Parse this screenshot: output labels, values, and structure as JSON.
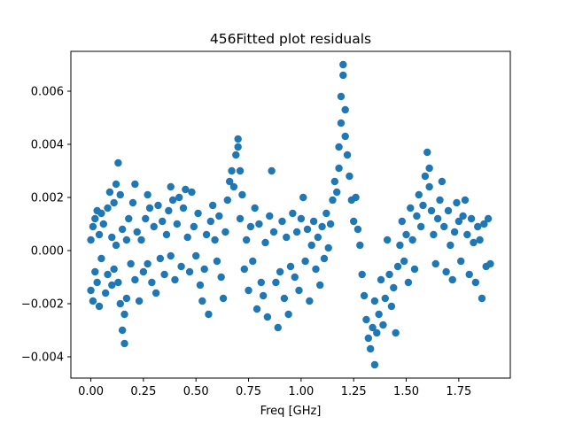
{
  "chart_data": {
    "type": "scatter",
    "title": "456Fitted plot residuals",
    "xlabel": "Freq [GHz]",
    "ylabel": "",
    "xlim": [
      -0.095,
      1.995
    ],
    "ylim": [
      -0.0048,
      0.0075
    ],
    "x_ticks": [
      0.0,
      0.25,
      0.5,
      0.75,
      1.0,
      1.25,
      1.5,
      1.75
    ],
    "x_tick_labels": [
      "0.00",
      "0.25",
      "0.50",
      "0.75",
      "1.00",
      "1.25",
      "1.50",
      "1.75"
    ],
    "y_ticks": [
      -0.004,
      -0.002,
      0.0,
      0.002,
      0.004,
      0.006
    ],
    "y_tick_labels": [
      "−0.004",
      "−0.002",
      "0.000",
      "0.002",
      "0.004",
      "0.006"
    ],
    "grid": false,
    "marker_color": "#1f77b4",
    "series": [
      {
        "points": [
          [
            0.0,
            0.0004
          ],
          [
            0.0,
            -0.0015
          ],
          [
            0.01,
            0.0009
          ],
          [
            0.01,
            -0.0019
          ],
          [
            0.02,
            0.0012
          ],
          [
            0.02,
            -0.0008
          ],
          [
            0.03,
            0.0015
          ],
          [
            0.03,
            -0.0012
          ],
          [
            0.04,
            0.0006
          ],
          [
            0.04,
            -0.0021
          ],
          [
            0.05,
            0.0014
          ],
          [
            0.05,
            -0.0003
          ],
          [
            0.06,
            0.001
          ],
          [
            0.07,
            -0.0016
          ],
          [
            0.08,
            0.0016
          ],
          [
            0.08,
            -0.0009
          ],
          [
            0.09,
            0.0022
          ],
          [
            0.1,
            0.0005
          ],
          [
            0.1,
            -0.0013
          ],
          [
            0.11,
            0.0018
          ],
          [
            0.11,
            -0.0007
          ],
          [
            0.12,
            0.0025
          ],
          [
            0.12,
            0.0002
          ],
          [
            0.13,
            0.0033
          ],
          [
            0.13,
            -0.0012
          ],
          [
            0.14,
            0.0021
          ],
          [
            0.14,
            -0.002
          ],
          [
            0.15,
            0.0008
          ],
          [
            0.15,
            -0.003
          ],
          [
            0.16,
            -0.0035
          ],
          [
            0.16,
            -0.0024
          ],
          [
            0.17,
            0.0004
          ],
          [
            0.17,
            -0.0018
          ],
          [
            0.18,
            0.0012
          ],
          [
            0.19,
            -0.0005
          ],
          [
            0.2,
            0.0018
          ],
          [
            0.21,
            0.0025
          ],
          [
            0.21,
            -0.0011
          ],
          [
            0.22,
            0.0007
          ],
          [
            0.23,
            -0.0019
          ],
          [
            0.24,
            0.0004
          ],
          [
            0.25,
            -0.0008
          ],
          [
            0.26,
            0.0012
          ],
          [
            0.27,
            0.0021
          ],
          [
            0.27,
            -0.0005
          ],
          [
            0.28,
            0.0016
          ],
          [
            0.29,
            -0.0012
          ],
          [
            0.3,
            0.0009
          ],
          [
            0.31,
            -0.0016
          ],
          [
            0.32,
            0.0017
          ],
          [
            0.33,
            -0.0003
          ],
          [
            0.34,
            0.0011
          ],
          [
            0.35,
            -0.0009
          ],
          [
            0.36,
            0.0006
          ],
          [
            0.37,
            0.0015
          ],
          [
            0.38,
            0.0024
          ],
          [
            0.38,
            -0.0002
          ],
          [
            0.39,
            0.0019
          ],
          [
            0.4,
            -0.0011
          ],
          [
            0.41,
            0.001
          ],
          [
            0.42,
            0.002
          ],
          [
            0.43,
            -0.0006
          ],
          [
            0.44,
            0.0016
          ],
          [
            0.45,
            0.0023
          ],
          [
            0.46,
            0.0005
          ],
          [
            0.47,
            -0.0008
          ],
          [
            0.48,
            0.0022
          ],
          [
            0.49,
            0.0009
          ],
          [
            0.5,
            -0.0002
          ],
          [
            0.51,
            0.0014
          ],
          [
            0.52,
            -0.0013
          ],
          [
            0.53,
            -0.0019
          ],
          [
            0.54,
            -0.0007
          ],
          [
            0.55,
            0.0006
          ],
          [
            0.56,
            -0.0024
          ],
          [
            0.57,
            0.0011
          ],
          [
            0.58,
            0.0017
          ],
          [
            0.59,
            0.0004
          ],
          [
            0.6,
            -0.0004
          ],
          [
            0.61,
            0.0013
          ],
          [
            0.62,
            -0.001
          ],
          [
            0.63,
            -0.0018
          ],
          [
            0.64,
            0.0007
          ],
          [
            0.65,
            0.0019
          ],
          [
            0.66,
            0.0026
          ],
          [
            0.67,
            0.003
          ],
          [
            0.68,
            0.0024
          ],
          [
            0.69,
            0.0036
          ],
          [
            0.7,
            0.0042
          ],
          [
            0.7,
            0.0039
          ],
          [
            0.71,
            0.003
          ],
          [
            0.71,
            0.0012
          ],
          [
            0.72,
            0.0021
          ],
          [
            0.73,
            -0.0007
          ],
          [
            0.74,
            0.0004
          ],
          [
            0.75,
            -0.0015
          ],
          [
            0.76,
            0.0009
          ],
          [
            0.77,
            -0.0004
          ],
          [
            0.78,
            0.0016
          ],
          [
            0.79,
            -0.0022
          ],
          [
            0.8,
            0.001
          ],
          [
            0.81,
            -0.0012
          ],
          [
            0.82,
            -0.0017
          ],
          [
            0.83,
            0.0003
          ],
          [
            0.84,
            -0.0025
          ],
          [
            0.85,
            0.0013
          ],
          [
            0.86,
            0.003
          ],
          [
            0.87,
            0.0007
          ],
          [
            0.88,
            -0.0012
          ],
          [
            0.89,
            -0.0029
          ],
          [
            0.9,
            -0.0008
          ],
          [
            0.91,
            0.0011
          ],
          [
            0.92,
            -0.0018
          ],
          [
            0.93,
            0.0005
          ],
          [
            0.94,
            -0.0024
          ],
          [
            0.95,
            -0.0006
          ],
          [
            0.96,
            0.0014
          ],
          [
            0.97,
            -0.001
          ],
          [
            0.98,
            0.0007
          ],
          [
            0.99,
            -0.0015
          ],
          [
            1.0,
            0.0012
          ],
          [
            1.01,
            0.002
          ],
          [
            1.02,
            -0.0004
          ],
          [
            1.03,
            0.0008
          ],
          [
            1.04,
            -0.0019
          ],
          [
            1.05,
            0.0002
          ],
          [
            1.06,
            0.0011
          ],
          [
            1.07,
            -0.0007
          ],
          [
            1.08,
            0.0005
          ],
          [
            1.09,
            -0.0013
          ],
          [
            1.1,
            0.0009
          ],
          [
            1.11,
            -0.0003
          ],
          [
            1.12,
            0.0014
          ],
          [
            1.13,
            0.0001
          ],
          [
            1.14,
            0.001
          ],
          [
            1.15,
            0.0019
          ],
          [
            1.16,
            0.0026
          ],
          [
            1.17,
            0.0022
          ],
          [
            1.18,
            0.0031
          ],
          [
            1.18,
            0.0039
          ],
          [
            1.19,
            0.0048
          ],
          [
            1.19,
            0.0058
          ],
          [
            1.2,
            0.007
          ],
          [
            1.2,
            0.0066
          ],
          [
            1.21,
            0.0053
          ],
          [
            1.21,
            0.0043
          ],
          [
            1.22,
            0.0036
          ],
          [
            1.23,
            0.0028
          ],
          [
            1.24,
            0.0019
          ],
          [
            1.25,
            0.0011
          ],
          [
            1.26,
            0.002
          ],
          [
            1.27,
            0.0008
          ],
          [
            1.28,
            0.0002
          ],
          [
            1.29,
            -0.0009
          ],
          [
            1.3,
            -0.0017
          ],
          [
            1.31,
            -0.0026
          ],
          [
            1.32,
            -0.0033
          ],
          [
            1.33,
            -0.0037
          ],
          [
            1.34,
            -0.0029
          ],
          [
            1.35,
            -0.0043
          ],
          [
            1.35,
            -0.0019
          ],
          [
            1.36,
            -0.0031
          ],
          [
            1.37,
            -0.0024
          ],
          [
            1.38,
            -0.0011
          ],
          [
            1.39,
            -0.0028
          ],
          [
            1.4,
            -0.0018
          ],
          [
            1.41,
            0.0004
          ],
          [
            1.42,
            -0.0009
          ],
          [
            1.43,
            -0.0021
          ],
          [
            1.44,
            -0.0014
          ],
          [
            1.45,
            -0.0031
          ],
          [
            1.46,
            -0.0006
          ],
          [
            1.47,
            0.0002
          ],
          [
            1.48,
            0.0011
          ],
          [
            1.49,
            -0.0004
          ],
          [
            1.5,
            0.0006
          ],
          [
            1.51,
            -0.0012
          ],
          [
            1.52,
            0.0016
          ],
          [
            1.53,
            0.0004
          ],
          [
            1.54,
            -0.0007
          ],
          [
            1.55,
            0.0013
          ],
          [
            1.56,
            0.0021
          ],
          [
            1.57,
            0.0009
          ],
          [
            1.58,
            0.0017
          ],
          [
            1.59,
            0.0028
          ],
          [
            1.6,
            0.0037
          ],
          [
            1.61,
            0.0031
          ],
          [
            1.61,
            0.0024
          ],
          [
            1.62,
            0.0015
          ],
          [
            1.63,
            0.0006
          ],
          [
            1.64,
            -0.0005
          ],
          [
            1.65,
            0.0012
          ],
          [
            1.66,
            0.0019
          ],
          [
            1.67,
            0.0026
          ],
          [
            1.68,
            0.0009
          ],
          [
            1.69,
            -0.0008
          ],
          [
            1.7,
            0.0015
          ],
          [
            1.71,
            0.0002
          ],
          [
            1.72,
            -0.0011
          ],
          [
            1.73,
            0.0007
          ],
          [
            1.74,
            0.0018
          ],
          [
            1.75,
            0.0011
          ],
          [
            1.76,
            -0.0004
          ],
          [
            1.77,
            0.0013
          ],
          [
            1.78,
            0.0019
          ],
          [
            1.79,
            0.0006
          ],
          [
            1.8,
            -0.0009
          ],
          [
            1.81,
            0.0012
          ],
          [
            1.82,
            0.0003
          ],
          [
            1.83,
            -0.0012
          ],
          [
            1.84,
            0.0009
          ],
          [
            1.85,
            0.0004
          ],
          [
            1.86,
            -0.0018
          ],
          [
            1.87,
            0.001
          ],
          [
            1.88,
            -0.0006
          ],
          [
            1.89,
            0.0012
          ],
          [
            1.9,
            -0.0005
          ]
        ]
      }
    ]
  }
}
